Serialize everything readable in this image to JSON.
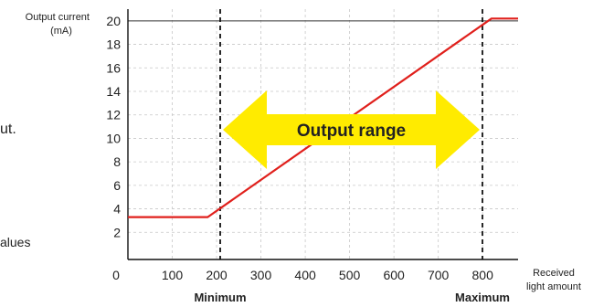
{
  "page": {
    "fragments": [
      {
        "id": "frag1",
        "text": "ut."
      },
      {
        "id": "frag2",
        "text": "alues"
      }
    ]
  },
  "chart_data": {
    "type": "line",
    "ylabel": "Output current\n(mA)",
    "xlabel": "Received\nlight amount",
    "xlim": [
      0,
      880
    ],
    "ylim": [
      0,
      21
    ],
    "x_ticks": [
      0,
      100,
      200,
      300,
      400,
      500,
      600,
      700,
      800
    ],
    "y_ticks": [
      2,
      4,
      6,
      8,
      10,
      12,
      14,
      16,
      18,
      20
    ],
    "grid": true,
    "series": [
      {
        "color": "#e0201c",
        "points": [
          [
            0,
            3.3
          ],
          [
            180,
            3.3
          ],
          [
            820,
            20.2
          ],
          [
            880,
            20.2
          ]
        ]
      }
    ],
    "markers": [
      {
        "x": 200,
        "label": "Minimum"
      },
      {
        "x": 820,
        "label": "Maximum"
      }
    ],
    "range_arrow": {
      "label": "Output range",
      "from": 200,
      "to": 820,
      "y": 11,
      "color": "#ffeb00"
    }
  }
}
